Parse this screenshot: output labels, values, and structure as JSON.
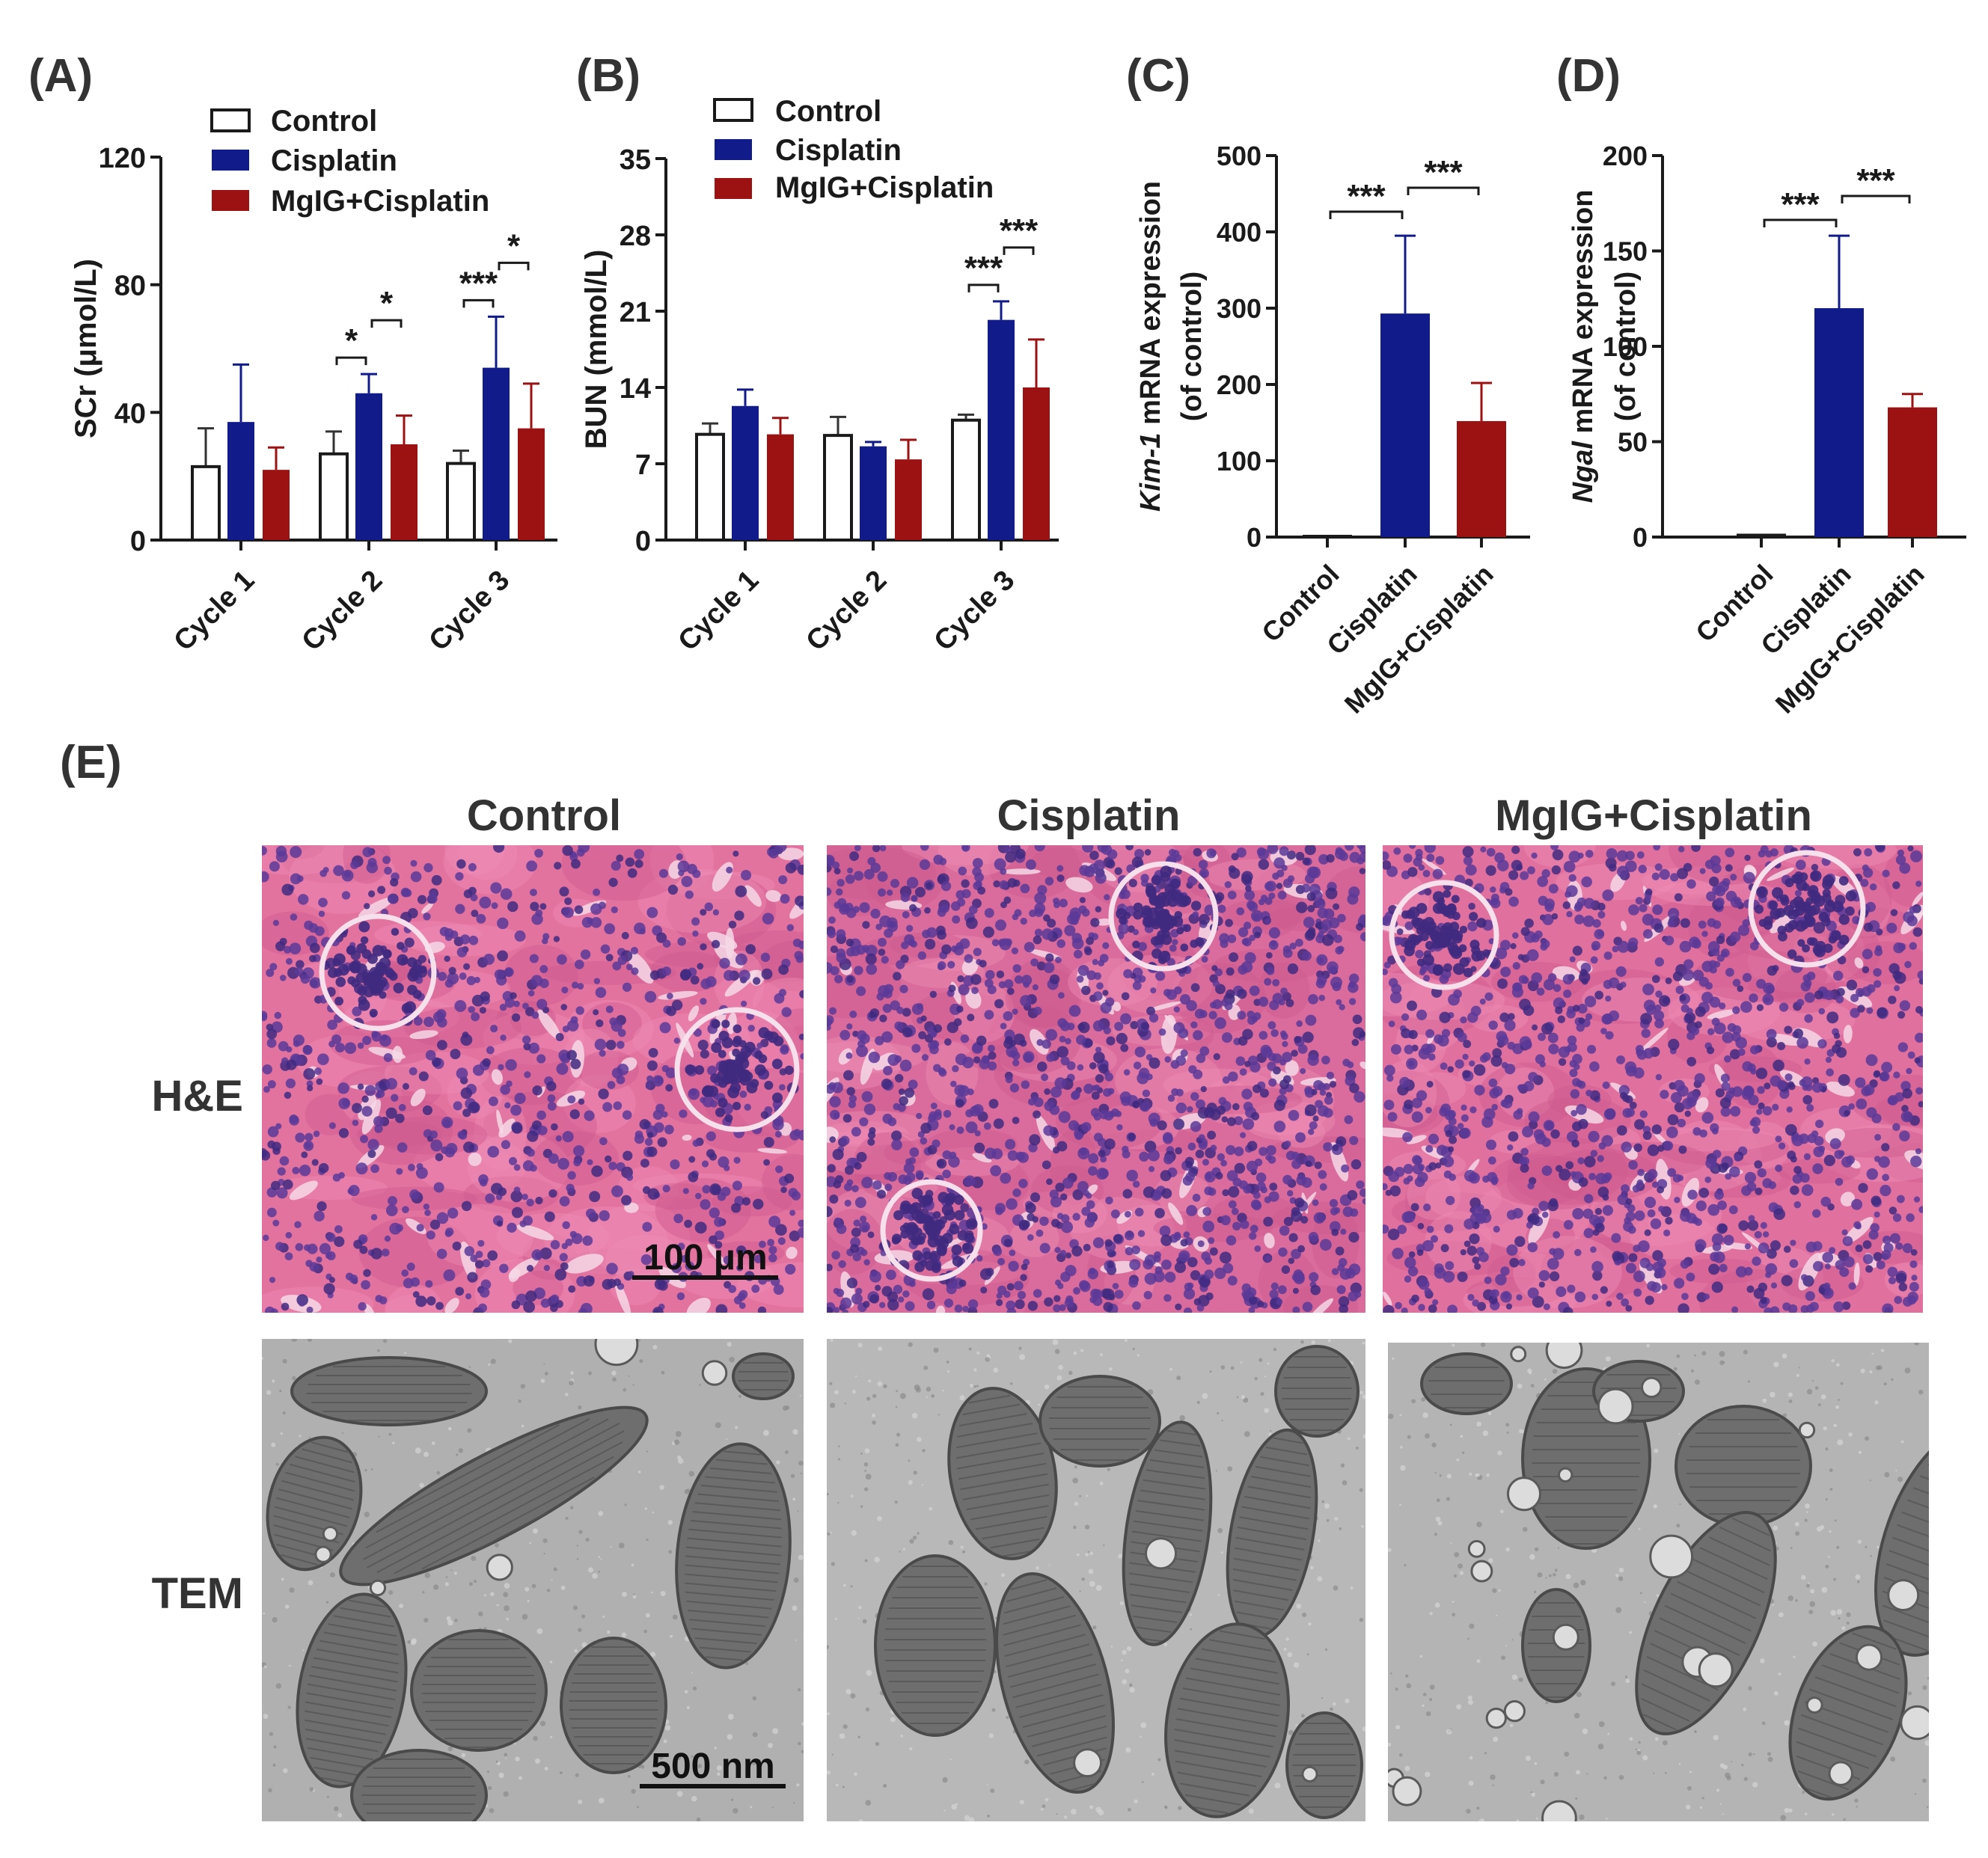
{
  "figure_labels": {
    "A": "(A)",
    "B": "(B)",
    "C": "(C)",
    "D": "(D)",
    "E": "(E)"
  },
  "legend": {
    "control": "Control",
    "cisplatin": "Cisplatin",
    "mglg_cisplatin": "MgIG+Cisplatin"
  },
  "colors": {
    "control_fill": "#ffffff",
    "cisplatin": "#111c8a",
    "mglg_cisplatin": "#9c1212",
    "axis": "#1a1a1a"
  },
  "chart_data": [
    {
      "panel": "A",
      "type": "bar",
      "ylabel": "SCr (μmol/L)",
      "ylim": [
        0,
        120
      ],
      "yticks": [
        0,
        40,
        80,
        120
      ],
      "categories": [
        "Cycle 1",
        "Cycle 2",
        "Cycle 3"
      ],
      "series": [
        {
          "name": "Control",
          "values": [
            23,
            27,
            24
          ],
          "errors": [
            12,
            7,
            4
          ]
        },
        {
          "name": "Cisplatin",
          "values": [
            37,
            46,
            54
          ],
          "errors": [
            18,
            6,
            16
          ]
        },
        {
          "name": "MgIG+Cisplatin",
          "values": [
            22,
            30,
            35
          ],
          "errors": [
            7,
            9,
            14
          ]
        }
      ],
      "significance": [
        {
          "category": 1,
          "from": 0,
          "to": 1,
          "label": "*"
        },
        {
          "category": 1,
          "from": 1,
          "to": 2,
          "label": "*"
        },
        {
          "category": 2,
          "from": 0,
          "to": 1,
          "label": "***"
        },
        {
          "category": 2,
          "from": 1,
          "to": 2,
          "label": "*"
        }
      ]
    },
    {
      "panel": "B",
      "type": "bar",
      "ylabel": "BUN (mmol/L)",
      "ylim": [
        0,
        35
      ],
      "yticks": [
        0,
        7,
        14,
        21,
        28,
        35
      ],
      "categories": [
        "Cycle 1",
        "Cycle 2",
        "Cycle 3"
      ],
      "series": [
        {
          "name": "Control",
          "values": [
            9.7,
            9.6,
            11.0
          ],
          "errors": [
            1.0,
            1.7,
            0.5
          ]
        },
        {
          "name": "Cisplatin",
          "values": [
            12.3,
            8.6,
            20.2
          ],
          "errors": [
            1.5,
            0.4,
            1.7
          ]
        },
        {
          "name": "MgIG+Cisplatin",
          "values": [
            9.7,
            7.4,
            14.0
          ],
          "errors": [
            1.5,
            1.8,
            4.4
          ]
        }
      ],
      "significance": [
        {
          "category": 2,
          "from": 0,
          "to": 1,
          "label": "***"
        },
        {
          "category": 2,
          "from": 1,
          "to": 2,
          "label": "***"
        }
      ]
    },
    {
      "panel": "C",
      "type": "bar",
      "ylabel_italic": "Kim-1",
      "ylabel_rest": " mRNA expression",
      "ylabel_line2": "(of control)",
      "ylim": [
        0,
        500
      ],
      "yticks": [
        0,
        100,
        200,
        300,
        400,
        500
      ],
      "categories": [
        "Control",
        "Cisplatin",
        "MgIG+Cisplatin"
      ],
      "values": [
        1,
        293,
        152
      ],
      "errors": [
        0,
        102,
        50
      ],
      "significance": [
        {
          "from": 0,
          "to": 1,
          "label": "***"
        },
        {
          "from": 1,
          "to": 2,
          "label": "***"
        }
      ]
    },
    {
      "panel": "D",
      "type": "bar",
      "ylabel_italic": "Ngal",
      "ylabel_rest": " mRNA expression",
      "ylabel_line2": "(of control)",
      "ylim": [
        0,
        200
      ],
      "yticks": [
        0,
        50,
        100,
        150,
        200
      ],
      "categories": [
        "Control",
        "Cisplatin",
        "MgIG+Cisplatin"
      ],
      "values": [
        1,
        120,
        68
      ],
      "errors": [
        0,
        38,
        7
      ],
      "significance": [
        {
          "from": 0,
          "to": 1,
          "label": "***"
        },
        {
          "from": 1,
          "to": 2,
          "label": "***"
        }
      ]
    }
  ],
  "micrographs": {
    "columns": [
      "Control",
      "Cisplatin",
      "MgIG+Cisplatin"
    ],
    "rows": [
      "H&E",
      "TEM"
    ],
    "he_scale_bar": "100 μm",
    "tem_scale_bar": "500 nm",
    "he_colors": {
      "background": "#e2729e",
      "nucleus": "#5a3a98",
      "lumen": "#f4d8e6"
    },
    "tem_colors": {
      "background": "#b4b4b4",
      "mito": "#6e6e6e",
      "membrane": "#4a4a4a"
    }
  }
}
